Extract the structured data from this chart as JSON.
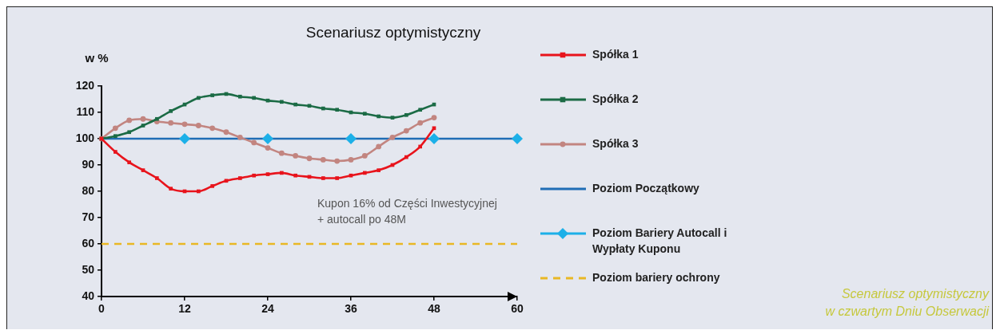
{
  "chart_data": {
    "type": "line",
    "title": "Scenariusz optymistyczny",
    "ylabel": "w %",
    "x": [
      0,
      2,
      4,
      6,
      8,
      10,
      12,
      14,
      16,
      18,
      20,
      22,
      24,
      26,
      28,
      30,
      32,
      34,
      36,
      38,
      40,
      42,
      44,
      46,
      48
    ],
    "xlim": [
      0,
      60
    ],
    "xticks": [
      0,
      12,
      24,
      36,
      48,
      60
    ],
    "ylim": [
      40,
      120
    ],
    "yticks": [
      40,
      50,
      60,
      70,
      80,
      90,
      100,
      110,
      120
    ],
    "series": [
      {
        "name": "Spółka 1",
        "color": "#e8141c",
        "marker": "square",
        "values": [
          100,
          95,
          91,
          88,
          85,
          81,
          80,
          80,
          82,
          84,
          85,
          86,
          86.5,
          87,
          86,
          85.5,
          85,
          85,
          86,
          87,
          88,
          90,
          93,
          97,
          104
        ]
      },
      {
        "name": "Spółka 2",
        "color": "#1b6b45",
        "marker": "square",
        "values": [
          100,
          101,
          102.5,
          105,
          107.5,
          110.5,
          113,
          115.5,
          116.5,
          117,
          116,
          115.5,
          114.5,
          114,
          113,
          112.5,
          111.5,
          111,
          110,
          109.5,
          108.5,
          108,
          109,
          111,
          113
        ]
      },
      {
        "name": "Spółka 3",
        "color": "#c28580",
        "marker": "circle",
        "values": [
          100,
          104,
          107,
          107.5,
          106.5,
          106,
          105.5,
          105,
          104,
          102.5,
          100.5,
          98.5,
          96.5,
          94.5,
          93.5,
          92.5,
          92,
          91.5,
          92,
          93.5,
          97,
          100.5,
          103,
          106,
          108
        ]
      },
      {
        "name": "Poziom Początkowy",
        "color": "#1f6db5",
        "x": [
          0,
          60
        ],
        "values": [
          100,
          100
        ]
      },
      {
        "name": "Poziom Bariery Autocall i Wypłaty Kuponu",
        "type": "scatter",
        "color": "#1cb0e8",
        "marker": "diamond",
        "x": [
          12,
          24,
          36,
          48,
          60
        ],
        "values": [
          100,
          100,
          100,
          100,
          100
        ]
      },
      {
        "name": "Poziom bariery ochrony",
        "color": "#e9b824",
        "line_style": "dashed",
        "x": [
          0,
          60
        ],
        "values": [
          60,
          60
        ]
      }
    ],
    "legend": "right",
    "annotations": [
      "Kupon 16% od Części Inwestycyjnej\n+ autocall po 48M",
      "Scenariusz optymistyczny\nw czwartym Dniu Obserwacji"
    ]
  }
}
